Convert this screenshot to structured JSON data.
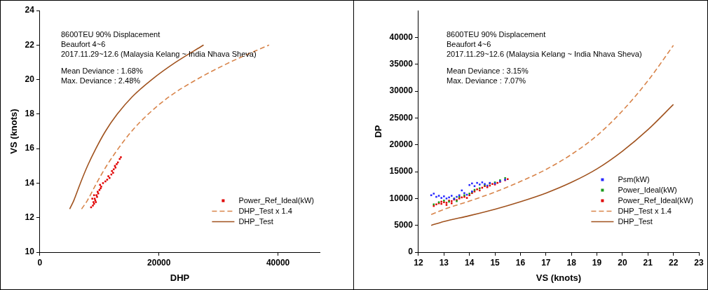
{
  "chart_data": [
    {
      "type": "scatter",
      "annotations": [
        "8600TEU 90% Displacement",
        "Beaufort 4~6",
        "2017.11.29~12.6 (Malaysia Kelang ~ India Nhava Sheva)",
        "Mean Deviance : 1.68%",
        "Max. Deviance : 2.48%"
      ],
      "x_label": "DHP",
      "y_label": "VS (knots)",
      "xlim": [
        0,
        47000
      ],
      "xticks": [
        0,
        20000,
        40000
      ],
      "ylim": [
        10,
        24
      ],
      "yticks": [
        10,
        12,
        14,
        16,
        18,
        20,
        22,
        24
      ],
      "grid": false,
      "legend": "lower right",
      "series": [
        {
          "name": "Power_Ref_Ideal(kW)",
          "type": "scatter",
          "color": "#e00000",
          "marker": "square",
          "x": [
            8600,
            8900,
            9100,
            9000,
            9300,
            9200,
            9600,
            9500,
            9800,
            9700,
            10000,
            10200,
            10300,
            10100,
            10600,
            11000,
            11300,
            11700,
            11500,
            12000,
            12300,
            12100,
            12400,
            12700,
            12600,
            12900,
            13100,
            13400,
            13600,
            8800,
            9100,
            9400
          ],
          "values": [
            12.6,
            12.7,
            12.8,
            12.9,
            13.0,
            13.1,
            13.2,
            13.3,
            13.4,
            13.5,
            13.6,
            13.7,
            13.8,
            13.9,
            14.0,
            14.1,
            14.2,
            14.3,
            14.4,
            14.5,
            14.6,
            14.7,
            14.8,
            14.9,
            15.0,
            15.1,
            15.2,
            15.4,
            15.5,
            13.1,
            13.3,
            12.9
          ]
        },
        {
          "name": "DHP_Test x 1.4",
          "type": "line",
          "color": "#d8844a",
          "line_style": "dashed",
          "x": [
            7000,
            7980,
            9520,
            11200,
            13160,
            15400,
            18200,
            21700,
            26320,
            31920,
            38500
          ],
          "values": [
            12.5,
            13,
            14,
            15,
            16,
            17,
            18,
            19,
            20,
            21,
            22
          ]
        },
        {
          "name": "DHP_Test",
          "type": "line",
          "color": "#a0521e",
          "line_style": "solid",
          "x": [
            5000,
            5700,
            6800,
            8000,
            9400,
            11000,
            13000,
            15500,
            18800,
            22800,
            27500
          ],
          "values": [
            12.5,
            13,
            14,
            15,
            16,
            17,
            18,
            19,
            20,
            21,
            22
          ]
        }
      ]
    },
    {
      "type": "scatter",
      "annotations": [
        "8600TEU 90% Displacement",
        "Beaufort 4~6",
        "2017.11.29~12.6 (Malaysia Kelang ~ India Nhava Sheva)",
        "Mean Deviance : 3.15%",
        "Max. Deviance : 7.07%"
      ],
      "x_label": "VS (knots)",
      "y_label": "DP",
      "xlim": [
        12,
        23
      ],
      "xticks": [
        12,
        13,
        14,
        15,
        16,
        17,
        18,
        19,
        20,
        21,
        22,
        23
      ],
      "ylim": [
        0,
        45000
      ],
      "yticks": [
        0,
        5000,
        10000,
        15000,
        20000,
        25000,
        30000,
        35000,
        40000
      ],
      "grid": false,
      "legend": "lower right",
      "series": [
        {
          "name": "Psm(kW)",
          "type": "scatter",
          "color": "#2828ff",
          "marker": "square",
          "x": [
            12.5,
            12.6,
            12.7,
            12.8,
            12.9,
            13.0,
            13.1,
            13.2,
            13.3,
            13.4,
            13.5,
            13.6,
            13.8,
            13.9,
            14.0,
            14.1,
            14.2,
            14.3,
            14.4,
            14.5,
            14.6,
            14.7,
            14.8,
            15.0,
            15.2,
            15.4,
            13.7,
            14.1
          ],
          "values": [
            10600,
            10900,
            10300,
            10500,
            10100,
            10400,
            10000,
            10200,
            10500,
            9900,
            10300,
            10600,
            11000,
            10700,
            12500,
            12800,
            12300,
            12900,
            12600,
            13000,
            12700,
            12400,
            12900,
            12800,
            13200,
            13500,
            11500,
            11300
          ]
        },
        {
          "name": "Power_Ideal(kW)",
          "type": "scatter",
          "color": "#1a9a1a",
          "marker": "square",
          "x": [
            12.6,
            12.8,
            13.0,
            13.2,
            13.4,
            13.6,
            13.8,
            14.0,
            14.2,
            14.4,
            14.6,
            14.8,
            15.0,
            15.2,
            15.4,
            13.5,
            14.1
          ],
          "values": [
            8900,
            9300,
            9600,
            9400,
            10000,
            10300,
            10600,
            10900,
            11600,
            11900,
            12500,
            12800,
            13000,
            13400,
            13800,
            9500,
            11200
          ]
        },
        {
          "name": "Power_Ref_Ideal(kW)",
          "type": "scatter",
          "color": "#e00000",
          "marker": "square",
          "x": [
            12.6,
            12.7,
            12.8,
            12.9,
            13.0,
            13.1,
            13.2,
            13.3,
            13.4,
            13.5,
            13.6,
            13.7,
            13.8,
            13.9,
            14.0,
            14.1,
            14.2,
            14.3,
            14.4,
            14.5,
            14.6,
            14.7,
            14.8,
            14.9,
            15.0,
            15.1,
            15.2,
            15.4,
            15.5,
            13.1,
            13.3,
            12.9
          ],
          "values": [
            8600,
            8900,
            9100,
            9000,
            9300,
            9200,
            9600,
            9500,
            9800,
            9700,
            10000,
            10200,
            10300,
            10100,
            10600,
            11000,
            11300,
            11700,
            11500,
            12000,
            12300,
            12100,
            12400,
            12700,
            12600,
            12900,
            13100,
            13400,
            13600,
            8800,
            9100,
            9400
          ]
        },
        {
          "name": "DHP_Test x 1.4",
          "type": "line",
          "color": "#d8844a",
          "line_style": "dashed",
          "x": [
            12.5,
            13,
            14,
            15,
            16,
            17,
            18,
            19,
            20,
            21,
            22
          ],
          "values": [
            7000,
            7980,
            9520,
            11200,
            13160,
            15400,
            18200,
            21700,
            26320,
            31920,
            38500
          ]
        },
        {
          "name": "DHP_Test",
          "type": "line",
          "color": "#a0521e",
          "line_style": "solid",
          "x": [
            12.5,
            13,
            14,
            15,
            16,
            17,
            18,
            19,
            20,
            21,
            22
          ],
          "values": [
            5000,
            5700,
            6800,
            8000,
            9400,
            11000,
            13000,
            15500,
            18800,
            22800,
            27500
          ]
        }
      ]
    }
  ]
}
